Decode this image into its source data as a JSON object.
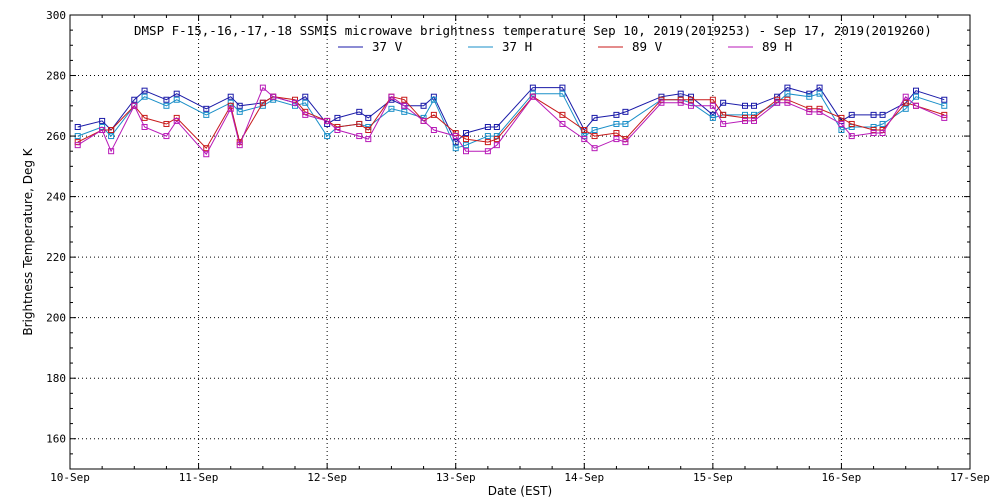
{
  "chart_data": {
    "type": "line",
    "title": "DMSP F-15,-16,-17,-18 SSMIS microwave brightness temperature Sep 10, 2019(2019253) - Sep 17, 2019(2019260)",
    "xlabel": "Date (EST)",
    "ylabel": "Brightness Temperature, Deg K",
    "xlim": [
      0,
      7
    ],
    "ylim": [
      150,
      300
    ],
    "yticks": [
      160,
      180,
      200,
      220,
      240,
      260,
      280,
      300
    ],
    "xticks": [
      {
        "value": 0,
        "label": "10-Sep"
      },
      {
        "value": 1,
        "label": "11-Sep"
      },
      {
        "value": 2,
        "label": "12-Sep"
      },
      {
        "value": 3,
        "label": "13-Sep"
      },
      {
        "value": 4,
        "label": "14-Sep"
      },
      {
        "value": 5,
        "label": "15-Sep"
      },
      {
        "value": 6,
        "label": "16-Sep"
      },
      {
        "value": 7,
        "label": "17-Sep"
      }
    ],
    "grid": true,
    "legend_position": "top-center",
    "x": [
      0.06,
      0.25,
      0.32,
      0.5,
      0.58,
      0.75,
      0.83,
      1.06,
      1.25,
      1.32,
      1.5,
      1.58,
      1.75,
      1.83,
      2.0,
      2.08,
      2.25,
      2.32,
      2.5,
      2.6,
      2.75,
      2.83,
      3.0,
      3.08,
      3.25,
      3.32,
      3.6,
      3.83,
      4.0,
      4.08,
      4.25,
      4.32,
      4.6,
      4.75,
      4.83,
      5.0,
      5.08,
      5.25,
      5.32,
      5.5,
      5.58,
      5.75,
      5.83,
      6.0,
      6.08,
      6.25,
      6.32,
      6.5,
      6.58,
      6.8
    ],
    "series": [
      {
        "name": "37 V",
        "color": "#1a1aa8",
        "values": [
          263,
          265,
          262,
          272,
          275,
          272,
          274,
          269,
          273,
          270,
          271,
          273,
          271,
          273,
          264,
          266,
          268,
          266,
          272,
          270,
          270,
          273,
          258,
          261,
          263,
          263,
          276,
          276,
          262,
          266,
          267,
          268,
          273,
          274,
          273,
          267,
          271,
          270,
          270,
          273,
          276,
          274,
          276,
          265,
          267,
          267,
          267,
          271,
          275,
          272
        ]
      },
      {
        "name": "37 H",
        "color": "#1a8fc8",
        "values": [
          260,
          263,
          260,
          270,
          273,
          270,
          272,
          267,
          271,
          268,
          270,
          272,
          270,
          271,
          260,
          263,
          264,
          263,
          269,
          268,
          266,
          272,
          256,
          257,
          260,
          260,
          274,
          274,
          260,
          262,
          264,
          264,
          272,
          272,
          271,
          266,
          267,
          267,
          267,
          271,
          274,
          273,
          274,
          262,
          263,
          263,
          264,
          269,
          273,
          270
        ]
      },
      {
        "name": "89 V",
        "color": "#c81a1a",
        "values": [
          258,
          262,
          262,
          270,
          266,
          264,
          266,
          256,
          270,
          258,
          271,
          273,
          272,
          268,
          265,
          263,
          264,
          262,
          273,
          272,
          265,
          267,
          261,
          259,
          258,
          259,
          273,
          267,
          262,
          260,
          261,
          259,
          272,
          272,
          272,
          272,
          267,
          266,
          266,
          272,
          272,
          269,
          269,
          266,
          264,
          262,
          262,
          271,
          270,
          267
        ]
      },
      {
        "name": "89 H",
        "color": "#b81ab8",
        "values": [
          257,
          262,
          255,
          270,
          263,
          260,
          265,
          254,
          269,
          257,
          276,
          273,
          271,
          267,
          265,
          262,
          260,
          259,
          273,
          270,
          265,
          262,
          260,
          255,
          255,
          257,
          273,
          264,
          259,
          256,
          259,
          258,
          271,
          271,
          270,
          270,
          264,
          265,
          265,
          271,
          271,
          268,
          268,
          264,
          260,
          261,
          261,
          273,
          270,
          266
        ]
      }
    ]
  }
}
